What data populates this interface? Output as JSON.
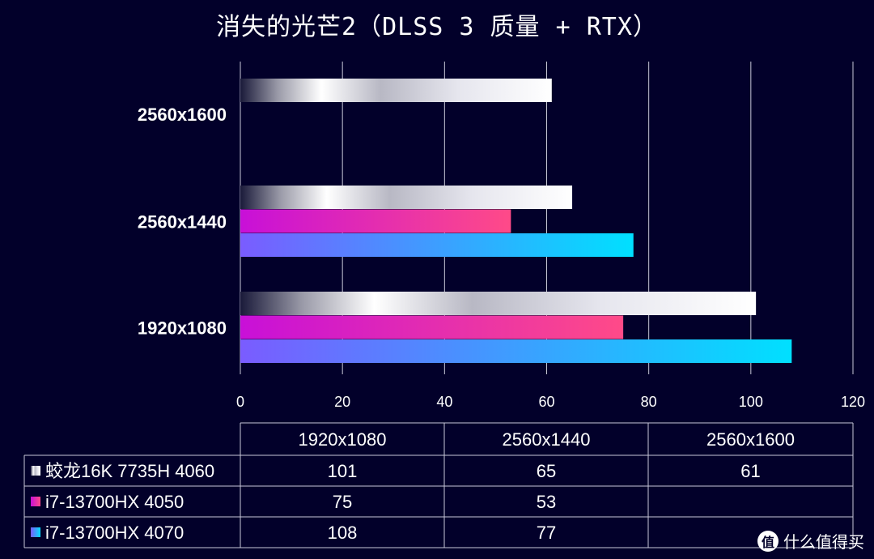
{
  "chart_data": {
    "type": "bar",
    "orientation": "horizontal",
    "title": "消失的光芒2（DLSS 3 质量 + RTX）",
    "categories": [
      "2560x1600",
      "2560x1440",
      "1920x1080"
    ],
    "series": [
      {
        "name": "蛟龙16K 7735H 4060",
        "values": [
          61,
          65,
          101
        ],
        "color": "#e8e8ee"
      },
      {
        "name": "i7-13700HX 4050",
        "values": [
          null,
          53,
          75
        ],
        "color": "#e832b8"
      },
      {
        "name": "i7-13700HX 4070",
        "values": [
          null,
          77,
          108
        ],
        "color": "#3fb8ff"
      }
    ],
    "xlim": [
      0,
      120
    ],
    "xticks": [
      0,
      20,
      40,
      60,
      80,
      100,
      120
    ],
    "grid": true,
    "legend": "table-below",
    "table": {
      "columns": [
        "1920x1080",
        "2560x1440",
        "2560x1600"
      ],
      "rows": [
        {
          "label": "蛟龙16K 7735H 4060",
          "cells": [
            "101",
            "65",
            "61"
          ]
        },
        {
          "label": "i7-13700HX 4050",
          "cells": [
            "75",
            "53",
            ""
          ]
        },
        {
          "label": "i7-13700HX 4070",
          "cells": [
            "108",
            "77",
            ""
          ]
        }
      ]
    }
  },
  "watermark": {
    "logo_text": "值",
    "text": "什么值得买"
  }
}
